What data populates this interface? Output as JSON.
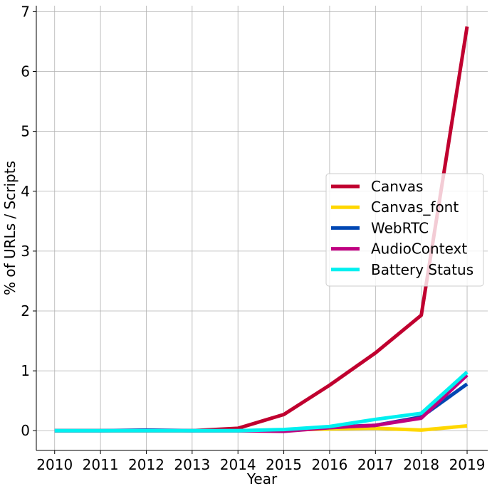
{
  "chart_data": {
    "type": "line",
    "title": "",
    "xlabel": "Year",
    "ylabel": "% of URLs / Scripts",
    "x": [
      2010,
      2011,
      2012,
      2013,
      2014,
      2015,
      2016,
      2017,
      2018,
      2019
    ],
    "xtick_labels": [
      "2010",
      "2011",
      "2012",
      "2013",
      "2014",
      "2015",
      "2016",
      "2017",
      "2018",
      "2019"
    ],
    "ytick_labels": [
      "0",
      "1",
      "2",
      "3",
      "4",
      "5",
      "6",
      "7"
    ],
    "ylim": [
      -0.33,
      7.1
    ],
    "xlim": [
      2009.6,
      2019.45
    ],
    "grid": true,
    "legend_position": "center-right",
    "series": [
      {
        "name": "Canvas",
        "color": "#c0002f",
        "values": [
          0,
          0,
          0,
          0,
          0.04,
          0.27,
          0.76,
          1.3,
          1.93,
          6.75
        ]
      },
      {
        "name": "Canvas_font",
        "color": "#ffd700",
        "values": [
          0,
          0,
          0,
          0,
          0,
          0.01,
          0.03,
          0.04,
          0.01,
          0.08
        ]
      },
      {
        "name": "WebRTC",
        "color": "#0047b3",
        "values": [
          0,
          0,
          0.01,
          0,
          0,
          0,
          0.06,
          0.09,
          0.23,
          0.78
        ]
      },
      {
        "name": "AudioContext",
        "color": "#bf0080",
        "values": [
          0,
          0,
          0,
          0,
          0,
          -0.01,
          0.05,
          0.09,
          0.21,
          0.93
        ]
      },
      {
        "name": "Battery Status",
        "color": "#00f0f0",
        "values": [
          0,
          0,
          0,
          0,
          0,
          0.02,
          0.07,
          0.19,
          0.29,
          0.98
        ]
      }
    ]
  }
}
